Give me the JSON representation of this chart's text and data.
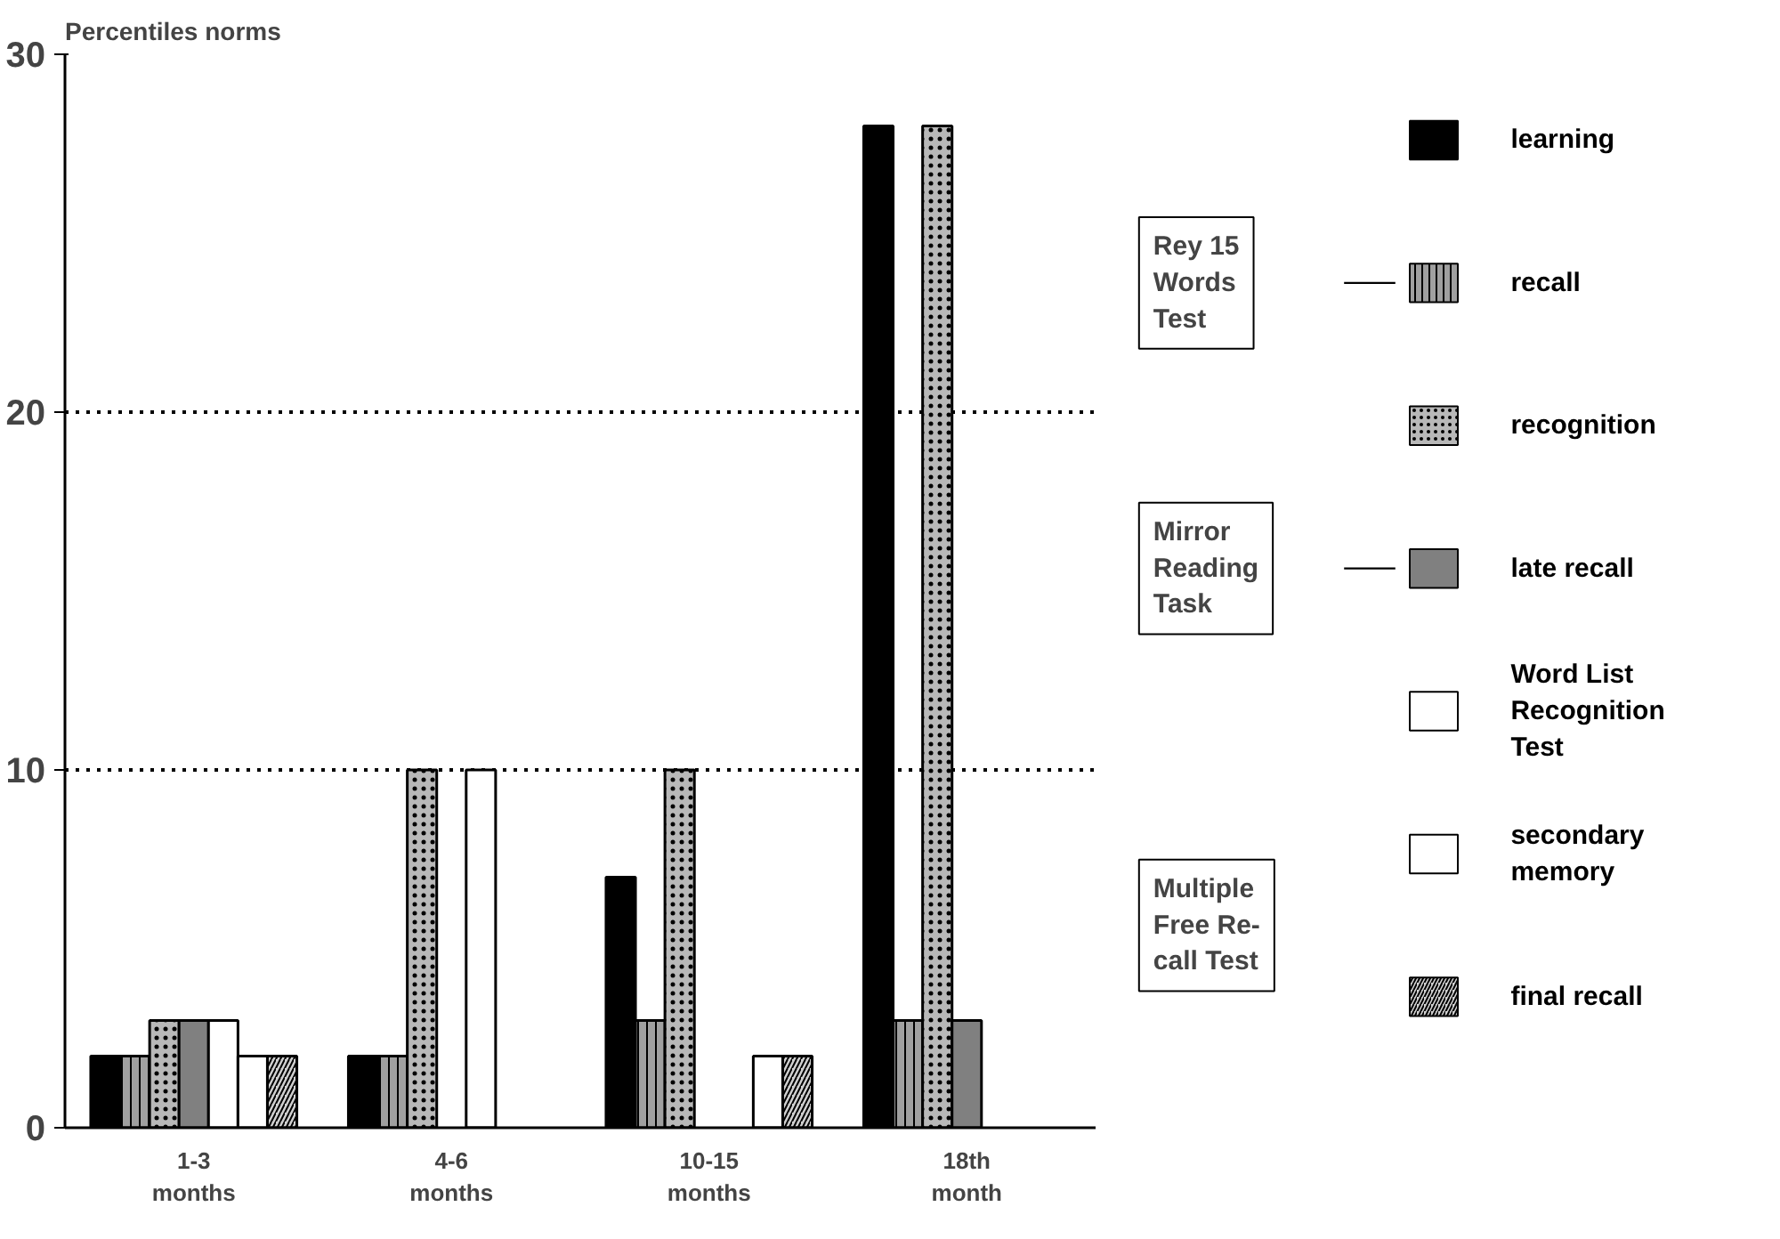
{
  "chart_data": {
    "type": "bar",
    "ylabel": "Percentiles norms",
    "categories": [
      "1-3\nmonths",
      "4-6\nmonths",
      "10-15\nmonths",
      "18th\nmonth"
    ],
    "series": [
      {
        "name": "learning",
        "color": "#000000",
        "values": [
          2,
          2,
          7,
          28
        ]
      },
      {
        "name": "recall",
        "color": "#a0a0a0",
        "values": [
          2,
          2,
          3,
          3
        ]
      },
      {
        "name": "recognition",
        "color": "#b8b8b8",
        "values": [
          3,
          10,
          10,
          28
        ]
      },
      {
        "name": "late recall",
        "color": "#808080",
        "values": [
          3,
          null,
          null,
          3
        ]
      },
      {
        "name": "Word List\nRecognition\nTest",
        "color": "#ffffff",
        "values": [
          3,
          10,
          null,
          null
        ]
      },
      {
        "name": "secondary\nmemory",
        "color": "#ffffff",
        "values": [
          2,
          null,
          2,
          null
        ]
      },
      {
        "name": "final recall",
        "color": "#d0d0d0",
        "values": [
          2,
          null,
          2,
          null
        ]
      }
    ],
    "annotations": [
      "Rey 15\nWords\nTest",
      "Mirror\nReading\nTask",
      "Multiple\nFree Re-\ncall Test"
    ],
    "ylim": [
      0,
      30
    ],
    "yticks": [
      0,
      10,
      20,
      30
    ],
    "grid": "y",
    "legend": "right"
  }
}
